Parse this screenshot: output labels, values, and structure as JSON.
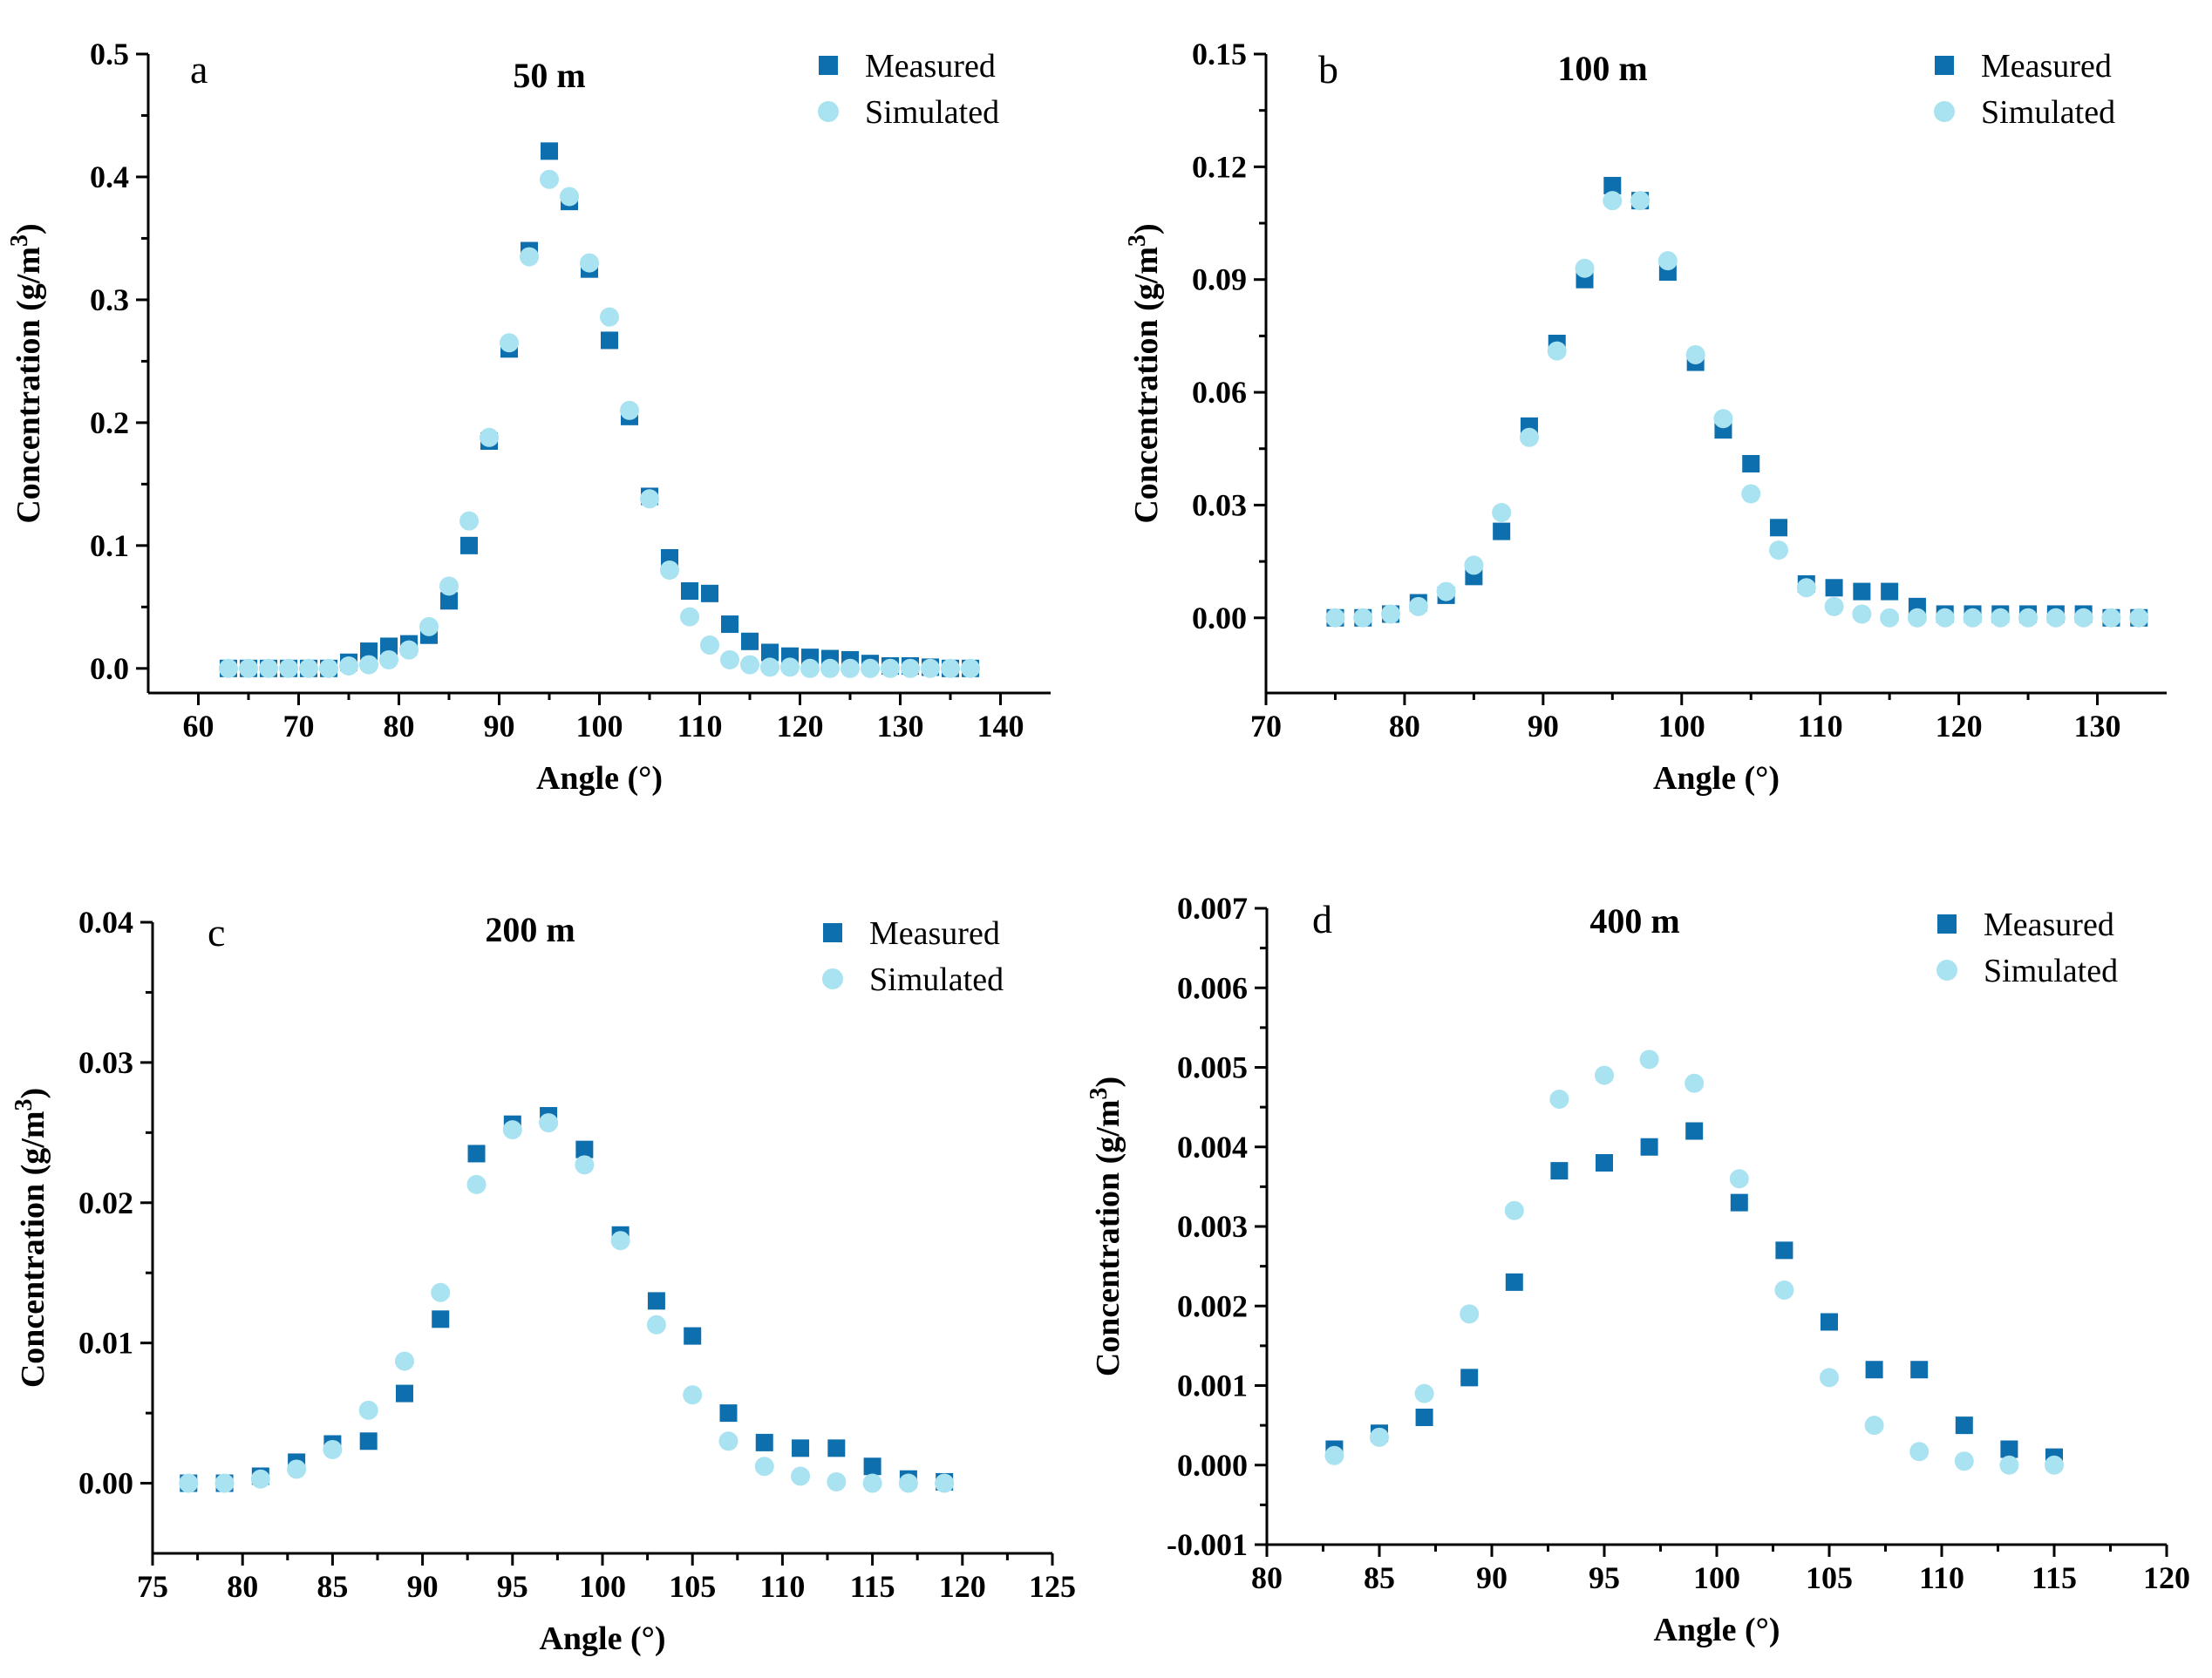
{
  "chart_data": [
    {
      "type": "scatter",
      "panel_letter": "a",
      "title": "50 m",
      "xlabel": "Angle (°)",
      "ylabel": "Concentration (g/m",
      "ylabel_sup": "3",
      "ylabel_close": ")",
      "xlim": [
        55,
        145
      ],
      "ylim": [
        -0.02,
        0.5
      ],
      "xticks": [
        60,
        70,
        80,
        90,
        100,
        110,
        120,
        130,
        140
      ],
      "yticks": [
        0.0,
        0.1,
        0.2,
        0.3,
        0.4,
        0.5
      ],
      "xtick_labels": [
        "60",
        "70",
        "80",
        "90",
        "100",
        "110",
        "120",
        "130",
        "140"
      ],
      "ytick_labels": [
        "0.0",
        "0.1",
        "0.2",
        "0.3",
        "0.4",
        "0.5"
      ],
      "legend": [
        "Measured",
        "Simulated"
      ],
      "series": [
        {
          "name": "Measured",
          "x": [
            63,
            65,
            67,
            69,
            71,
            73,
            75,
            77,
            79,
            81,
            83,
            85,
            87,
            89,
            91,
            93,
            95,
            97,
            99,
            101,
            103,
            105,
            107,
            109,
            111,
            113,
            115,
            117,
            119,
            121,
            123,
            125,
            127,
            129,
            131,
            133,
            135,
            137
          ],
          "y": [
            0,
            0,
            0,
            0,
            0,
            0,
            0.005,
            0.014,
            0.018,
            0.02,
            0.027,
            0.055,
            0.1,
            0.185,
            0.26,
            0.34,
            0.421,
            0.38,
            0.325,
            0.267,
            0.205,
            0.14,
            0.09,
            0.063,
            0.061,
            0.036,
            0.022,
            0.013,
            0.01,
            0.009,
            0.008,
            0.007,
            0.004,
            0.002,
            0.002,
            0.001,
            0,
            0
          ]
        },
        {
          "name": "Simulated",
          "x": [
            63,
            65,
            67,
            69,
            71,
            73,
            75,
            77,
            79,
            81,
            83,
            85,
            87,
            89,
            91,
            93,
            95,
            97,
            99,
            101,
            103,
            105,
            107,
            109,
            111,
            113,
            115,
            117,
            119,
            121,
            123,
            125,
            127,
            129,
            131,
            133,
            135,
            137
          ],
          "y": [
            0,
            0,
            0,
            0,
            0,
            0,
            0.002,
            0.003,
            0.007,
            0.015,
            0.034,
            0.067,
            0.12,
            0.188,
            0.265,
            0.335,
            0.398,
            0.384,
            0.33,
            0.286,
            0.21,
            0.138,
            0.08,
            0.042,
            0.019,
            0.007,
            0.003,
            0.001,
            0.001,
            0,
            0,
            0,
            0,
            0,
            0,
            0,
            0,
            0
          ]
        }
      ]
    },
    {
      "type": "scatter",
      "panel_letter": "b",
      "title": "100 m",
      "xlabel": "Angle (°)",
      "ylabel": "Concentration (g/m",
      "ylabel_sup": "3",
      "ylabel_close": ")",
      "xlim": [
        70,
        135
      ],
      "ylim": [
        -0.02,
        0.15
      ],
      "xticks": [
        70,
        80,
        90,
        100,
        110,
        120,
        130
      ],
      "yticks": [
        0.0,
        0.03,
        0.06,
        0.09,
        0.12,
        0.15
      ],
      "xtick_labels": [
        "70",
        "80",
        "90",
        "100",
        "110",
        "120",
        "130"
      ],
      "ytick_labels": [
        "0.00",
        "0.03",
        "0.06",
        "0.09",
        "0.12",
        "0.15"
      ],
      "legend": [
        "Measured",
        "Simulated"
      ],
      "series": [
        {
          "name": "Measured",
          "x": [
            75,
            77,
            79,
            81,
            83,
            85,
            87,
            89,
            91,
            93,
            95,
            97,
            99,
            101,
            103,
            105,
            107,
            109,
            111,
            113,
            115,
            117,
            119,
            121,
            123,
            125,
            127,
            129,
            131,
            133
          ],
          "y": [
            0,
            0,
            0.001,
            0.004,
            0.006,
            0.011,
            0.023,
            0.051,
            0.073,
            0.09,
            0.115,
            0.111,
            0.092,
            0.068,
            0.05,
            0.041,
            0.024,
            0.009,
            0.008,
            0.007,
            0.007,
            0.003,
            0.001,
            0.001,
            0.001,
            0.001,
            0.001,
            0.001,
            0,
            0
          ]
        },
        {
          "name": "Simulated",
          "x": [
            75,
            77,
            79,
            81,
            83,
            85,
            87,
            89,
            91,
            93,
            95,
            97,
            99,
            101,
            103,
            105,
            107,
            109,
            111,
            113,
            115,
            117,
            119,
            121,
            123,
            125,
            127,
            129,
            131,
            133
          ],
          "y": [
            0,
            0,
            0.001,
            0.003,
            0.007,
            0.014,
            0.028,
            0.048,
            0.071,
            0.093,
            0.111,
            0.111,
            0.095,
            0.07,
            0.053,
            0.033,
            0.018,
            0.008,
            0.003,
            0.001,
            0,
            0,
            0,
            0,
            0,
            0,
            0,
            0,
            0,
            0
          ]
        }
      ]
    },
    {
      "type": "scatter",
      "panel_letter": "c",
      "title": "200 m",
      "xlabel": "Angle (°)",
      "ylabel": "Concentration (g/m",
      "ylabel_sup": "3",
      "ylabel_close": ")",
      "xlim": [
        75,
        125
      ],
      "ylim": [
        -0.005,
        0.04
      ],
      "xticks": [
        75,
        80,
        85,
        90,
        95,
        100,
        105,
        110,
        115,
        120,
        125
      ],
      "yticks": [
        0.0,
        0.01,
        0.02,
        0.03,
        0.04
      ],
      "xtick_labels": [
        "75",
        "80",
        "85",
        "90",
        "95",
        "100",
        "105",
        "110",
        "115",
        "120",
        "125"
      ],
      "ytick_labels": [
        "0.00",
        "0.01",
        "0.02",
        "0.03",
        "0.04"
      ],
      "legend": [
        "Measured",
        "Simulated"
      ],
      "series": [
        {
          "name": "Measured",
          "x": [
            77,
            79,
            81,
            83,
            85,
            87,
            89,
            91,
            93,
            95,
            97,
            99,
            101,
            103,
            105,
            107,
            109,
            111,
            113,
            115,
            117,
            119
          ],
          "y": [
            0,
            0,
            0.0005,
            0.0015,
            0.0028,
            0.003,
            0.0064,
            0.0117,
            0.0235,
            0.0256,
            0.0262,
            0.0238,
            0.0177,
            0.013,
            0.0105,
            0.005,
            0.0029,
            0.0025,
            0.0025,
            0.0012,
            0.0003,
            0.0001
          ]
        },
        {
          "name": "Simulated",
          "x": [
            77,
            79,
            81,
            83,
            85,
            87,
            89,
            91,
            93,
            95,
            97,
            99,
            101,
            103,
            105,
            107,
            109,
            111,
            113,
            115,
            117,
            119
          ],
          "y": [
            0,
            0,
            0.0003,
            0.001,
            0.0024,
            0.0052,
            0.0087,
            0.0136,
            0.0213,
            0.0252,
            0.0257,
            0.0227,
            0.0173,
            0.0113,
            0.0063,
            0.003,
            0.0012,
            0.0005,
            0.0001,
            0,
            0,
            0
          ]
        }
      ]
    },
    {
      "type": "scatter",
      "panel_letter": "d",
      "title": "400 m",
      "xlabel": "Angle (°)",
      "ylabel": "Concentration (g/m",
      "ylabel_sup": "3",
      "ylabel_close": ")",
      "xlim": [
        80,
        120
      ],
      "ylim": [
        -0.001,
        0.007
      ],
      "xticks": [
        80,
        85,
        90,
        95,
        100,
        105,
        110,
        115,
        120
      ],
      "yticks": [
        -0.001,
        0.0,
        0.001,
        0.002,
        0.003,
        0.004,
        0.005,
        0.006,
        0.007
      ],
      "xtick_labels": [
        "80",
        "85",
        "90",
        "95",
        "100",
        "105",
        "110",
        "115",
        "120"
      ],
      "ytick_labels": [
        "-0.001",
        "0.000",
        "0.001",
        "0.002",
        "0.003",
        "0.004",
        "0.005",
        "0.006",
        "0.007"
      ],
      "legend": [
        "Measured",
        "Simulated"
      ],
      "series": [
        {
          "name": "Measured",
          "x": [
            83,
            85,
            87,
            89,
            91,
            93,
            95,
            97,
            99,
            101,
            103,
            105,
            107,
            109,
            111,
            113,
            115
          ],
          "y": [
            0.0002,
            0.0004,
            0.0006,
            0.0011,
            0.0023,
            0.0037,
            0.0038,
            0.004,
            0.0042,
            0.0033,
            0.0027,
            0.0018,
            0.0012,
            0.0012,
            0.0005,
            0.0002,
            0.0001
          ]
        },
        {
          "name": "Simulated",
          "x": [
            83,
            85,
            87,
            89,
            91,
            93,
            95,
            97,
            99,
            101,
            103,
            105,
            107,
            109,
            111,
            113,
            115
          ],
          "y": [
            0.00012,
            0.00035,
            0.0009,
            0.0019,
            0.0032,
            0.0046,
            0.0049,
            0.0051,
            0.0048,
            0.0036,
            0.0022,
            0.0011,
            0.0005,
            0.00017,
            5e-05,
            0,
            0
          ]
        }
      ]
    }
  ],
  "colors": {
    "measured": "#0E6FAE",
    "simulated": "#A9E2F0"
  }
}
